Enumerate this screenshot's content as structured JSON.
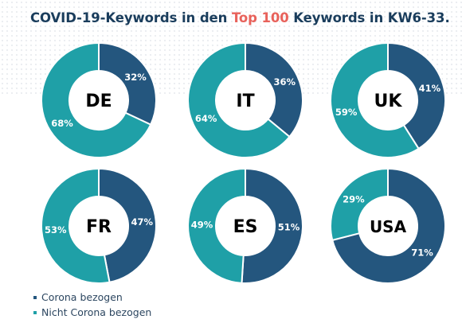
{
  "title": {
    "prefix": "COVID-19-Keywords in den ",
    "highlight": "Top 100",
    "suffix": " Keywords in KW6-33."
  },
  "colors": {
    "corona": "#24567e",
    "nicht_corona": "#1fa0a7",
    "title": "#1a3d5c",
    "highlight": "#e8625b"
  },
  "legend": [
    {
      "label": "Corona bezogen",
      "color": "#24567e"
    },
    {
      "label": "Nicht Corona bezogen",
      "color": "#1fa0a7"
    }
  ],
  "chart_data": {
    "type": "pie",
    "variant": "donut",
    "series_names": [
      "Corona bezogen",
      "Nicht Corona bezogen"
    ],
    "charts": [
      {
        "label": "DE",
        "values": [
          32,
          68
        ],
        "value_labels": [
          "32%",
          "68%"
        ]
      },
      {
        "label": "IT",
        "values": [
          36,
          64
        ],
        "value_labels": [
          "36%",
          "64%"
        ]
      },
      {
        "label": "UK",
        "values": [
          41,
          59
        ],
        "value_labels": [
          "41%",
          "59%"
        ]
      },
      {
        "label": "FR",
        "values": [
          47,
          53
        ],
        "value_labels": [
          "47%",
          "53%"
        ]
      },
      {
        "label": "ES",
        "values": [
          51,
          49
        ],
        "value_labels": [
          "51%",
          "49%"
        ]
      },
      {
        "label": "USA",
        "values": [
          71,
          29
        ],
        "value_labels": [
          "71%",
          "29%"
        ]
      }
    ],
    "legend_position": "bottom-left"
  }
}
